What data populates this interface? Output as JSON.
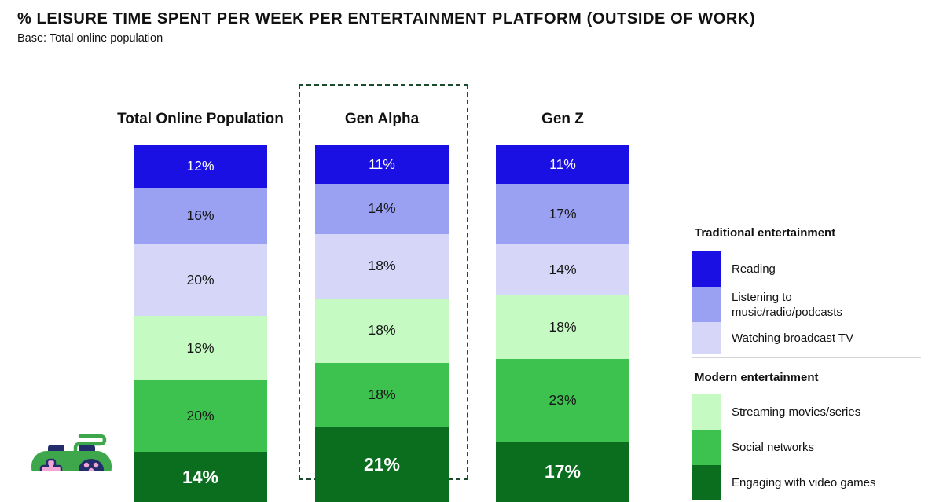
{
  "header": {
    "title": "% LEISURE TIME SPENT PER WEEK PER ENTERTAINMENT PLATFORM (OUTSIDE OF WORK)",
    "subtitle": "Base: Total online population"
  },
  "chart_data": {
    "type": "bar",
    "stacked": true,
    "unit": "%",
    "orientation": "vertical",
    "groups": [
      "Total Online Population",
      "Gen Alpha",
      "Gen Z"
    ],
    "highlighted_group": "Gen Alpha",
    "series": [
      {
        "name": "Reading",
        "section": "Traditional entertainment",
        "color": "#1b10e3",
        "text_color": "#ffffff",
        "values": [
          12,
          11,
          11
        ]
      },
      {
        "name": "Listening to music/radio/podcasts",
        "section": "Traditional entertainment",
        "color": "#9aa0f2",
        "text_color": "#161616",
        "values": [
          16,
          14,
          17
        ]
      },
      {
        "name": "Watching broadcast TV",
        "section": "Traditional entertainment",
        "color": "#d5d6f8",
        "text_color": "#161616",
        "values": [
          20,
          18,
          14
        ]
      },
      {
        "name": "Streaming movies/series",
        "section": "Modern entertainment",
        "color": "#c5fac3",
        "text_color": "#161616",
        "values": [
          18,
          18,
          18
        ]
      },
      {
        "name": "Social networks",
        "section": "Modern entertainment",
        "color": "#3dc14f",
        "text_color": "#161616",
        "values": [
          20,
          18,
          23
        ]
      },
      {
        "name": "Engaging with video games",
        "section": "Modern entertainment",
        "color": "#0a6e1e",
        "text_color": "#ffffff",
        "values": [
          14,
          21,
          17
        ]
      }
    ]
  },
  "legend": {
    "sections": [
      {
        "heading": "Traditional entertainment",
        "items": [
          {
            "label": "Reading",
            "color": "#1b10e3"
          },
          {
            "label": "Listening to music/radio/podcasts",
            "color": "#9aa0f2"
          },
          {
            "label": "Watching broadcast TV",
            "color": "#d5d6f8"
          }
        ]
      },
      {
        "heading": "Modern entertainment",
        "items": [
          {
            "label": "Streaming movies/series",
            "color": "#c5fac3"
          },
          {
            "label": "Social networks",
            "color": "#3dc14f"
          },
          {
            "label": "Engaging with video games",
            "color": "#0a6e1e"
          }
        ]
      }
    ]
  },
  "footer": {
    "icon": "game-controller-icon",
    "icon_colors": {
      "body": "#3fa74b",
      "buttons": "#242d6b",
      "accents": "#f0a7d8"
    }
  }
}
